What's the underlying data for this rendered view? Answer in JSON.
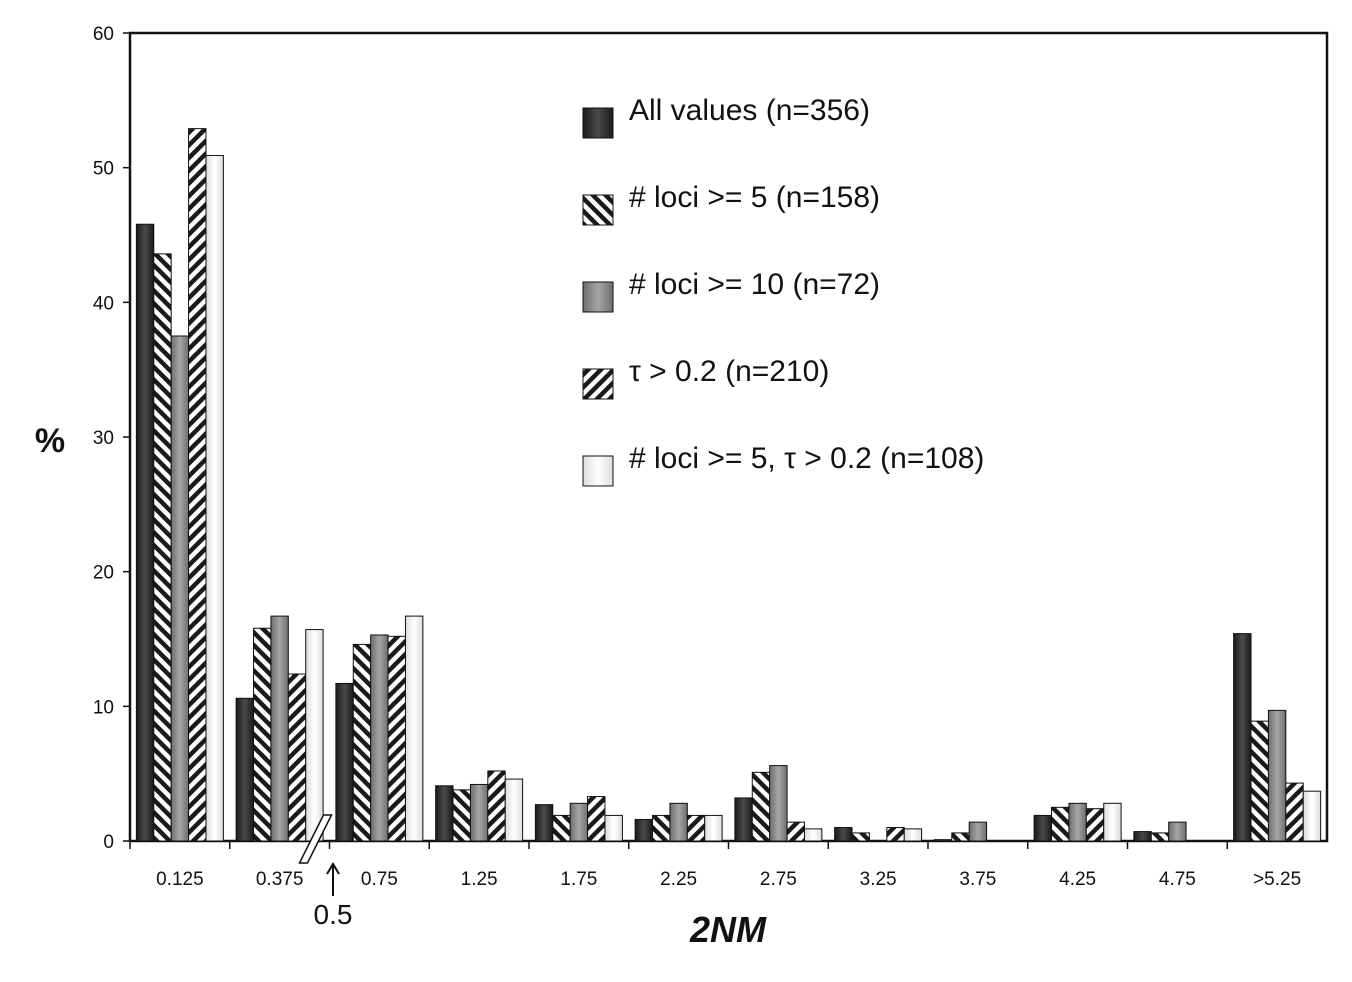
{
  "chart_data": {
    "type": "bar",
    "xlabel": "2NM",
    "ylabel": "%",
    "ylim": [
      0,
      60
    ],
    "yticks": [
      "0",
      "10",
      "20",
      "30",
      "40",
      "50",
      "60"
    ],
    "categories": [
      "0.125",
      "0.375",
      "0.75",
      "1.25",
      "1.75",
      "2.25",
      "2.75",
      "3.25",
      "3.75",
      "4.25",
      "4.75",
      ">5.25"
    ],
    "annotation": "0.5",
    "legend_position": "top-right",
    "series": [
      {
        "name": "All values  (n=356)",
        "pattern": "solid-dark",
        "values": [
          45.8,
          10.6,
          11.7,
          4.1,
          2.7,
          1.6,
          3.2,
          1.0,
          0.1,
          1.9,
          0.7,
          15.4
        ]
      },
      {
        "name": "# loci >= 5 (n=158)",
        "pattern": "diagonal-hatch-back",
        "values": [
          43.6,
          15.8,
          14.6,
          3.8,
          1.9,
          1.9,
          5.1,
          0.6,
          0.6,
          2.5,
          0.6,
          8.9
        ]
      },
      {
        "name": "# loci >= 10 (n=72)",
        "pattern": "solid-gray",
        "values": [
          37.5,
          16.7,
          15.3,
          4.2,
          2.8,
          2.8,
          5.6,
          0.0,
          1.4,
          2.8,
          1.4,
          9.7
        ]
      },
      {
        "name": "τ > 0.2 (n=210)",
        "pattern": "diagonal-hatch-forward",
        "values": [
          52.9,
          12.4,
          15.2,
          5.2,
          3.3,
          1.9,
          1.4,
          1.0,
          0.0,
          2.4,
          0.0,
          4.3
        ]
      },
      {
        "name": "# loci >= 5, τ > 0.2 (n=108)",
        "pattern": "solid-light",
        "values": [
          50.9,
          15.7,
          16.7,
          4.6,
          1.9,
          1.9,
          0.9,
          0.9,
          0.0,
          2.8,
          0.0,
          3.7
        ]
      }
    ]
  }
}
